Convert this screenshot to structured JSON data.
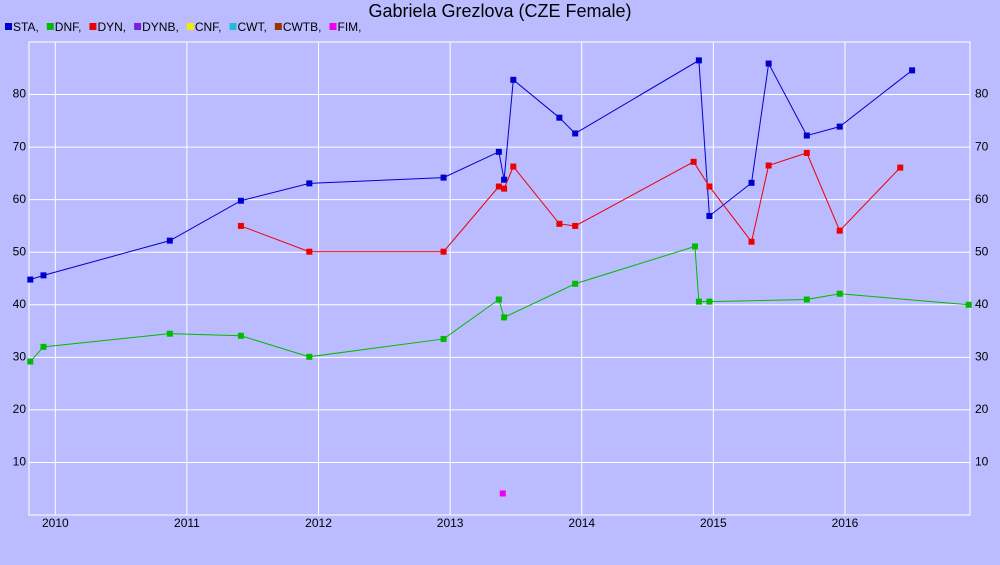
{
  "chart_data": {
    "type": "line",
    "title": "Gabriela Grezlova (CZE Female)",
    "xlim": [
      2009.8,
      2016.95
    ],
    "xticks": [
      2010,
      2011,
      2012,
      2013,
      2014,
      2015,
      2016
    ],
    "ylim": [
      0,
      90
    ],
    "yticks": [
      10,
      20,
      30,
      40,
      50,
      60,
      70,
      80
    ],
    "grid": true,
    "series": [
      {
        "name": "STA,",
        "color": "#0000cc",
        "x": [
          2009.81,
          2009.91,
          2010.87,
          2011.41,
          2011.93,
          2012.95,
          2013.37,
          2013.41,
          2013.48,
          2013.83,
          2013.95,
          2014.89,
          2014.97,
          2015.29,
          2015.42,
          2015.71,
          2015.96,
          2016.51
        ],
        "values": [
          44.8,
          45.6,
          52.2,
          59.8,
          63.1,
          64.2,
          69.1,
          63.8,
          82.8,
          75.6,
          72.6,
          86.5,
          56.9,
          63.2,
          85.9,
          72.2,
          73.9,
          84.6
        ]
      },
      {
        "name": "DNF,",
        "color": "#00bb00",
        "x": [
          2009.81,
          2009.91,
          2010.87,
          2011.41,
          2011.93,
          2012.95,
          2013.37,
          2013.41,
          2013.95,
          2014.86,
          2014.89,
          2014.97,
          2015.71,
          2015.96,
          2016.94
        ],
        "values": [
          29.2,
          32.0,
          34.5,
          34.1,
          30.1,
          33.5,
          41.0,
          37.6,
          44.0,
          51.1,
          40.6,
          40.6,
          41.0,
          42.1,
          40.0
        ]
      },
      {
        "name": "DYN,",
        "color": "#ee0000",
        "x": [
          2011.41,
          2011.93,
          2012.95,
          2013.37,
          2013.41,
          2013.48,
          2013.83,
          2013.95,
          2014.85,
          2014.97,
          2015.29,
          2015.42,
          2015.71,
          2015.96,
          2016.42
        ],
        "values": [
          55.0,
          50.1,
          50.1,
          62.5,
          62.1,
          66.3,
          55.4,
          55.0,
          67.2,
          62.5,
          52.0,
          66.5,
          68.9,
          54.1,
          66.1
        ]
      },
      {
        "name": "DYNB,",
        "color": "#7722dd",
        "x": [],
        "values": []
      },
      {
        "name": "CNF,",
        "color": "#eeee00",
        "x": [],
        "values": []
      },
      {
        "name": "CWT,",
        "color": "#22bbdd",
        "x": [],
        "values": []
      },
      {
        "name": "CWTB,",
        "color": "#993300",
        "x": [],
        "values": []
      },
      {
        "name": "FIM,",
        "color": "#ee00ee",
        "x": [
          2013.4
        ],
        "values": [
          4.1
        ]
      }
    ]
  }
}
